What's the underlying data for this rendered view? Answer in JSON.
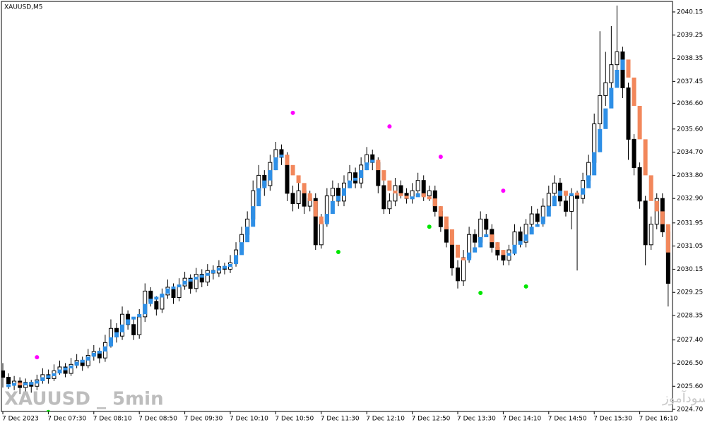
{
  "chart_data": {
    "type": "candlestick",
    "title": "XAUUSD,M5",
    "watermark": "XAUUSD _ 5min",
    "credit": "انتشار در سایت سودآموز",
    "up_color": "#ffffff",
    "down_color": "#000000",
    "categories": [
      "7 Dec 2023",
      null,
      null,
      null,
      null,
      null,
      null,
      null,
      "7 Dec 07:30",
      null,
      null,
      null,
      null,
      null,
      null,
      null,
      "7 Dec 08:10",
      null,
      null,
      null,
      null,
      null,
      null,
      null,
      "7 Dec 08:50",
      null,
      null,
      null,
      null,
      null,
      null,
      null,
      "7 Dec 09:30",
      null,
      null,
      null,
      null,
      null,
      null,
      null,
      "7 Dec 10:10",
      null,
      null,
      null,
      null,
      null,
      null,
      null,
      "7 Dec 10:50",
      null,
      null,
      null,
      null,
      null,
      null,
      null,
      "7 Dec 11:30",
      null,
      null,
      null,
      null,
      null,
      null,
      null,
      "7 Dec 12:10",
      null,
      null,
      null,
      null,
      null,
      null,
      null,
      "7 Dec 12:50",
      null,
      null,
      null,
      null,
      null,
      null,
      null,
      "7 Dec 13:30",
      null,
      null,
      null,
      null,
      null,
      null,
      null,
      "7 Dec 14:10",
      null,
      null,
      null,
      null,
      null,
      null,
      null,
      "7 Dec 14:50",
      null,
      null,
      null,
      null,
      null,
      null,
      null,
      "7 Dec 15:30",
      null,
      null,
      null,
      null,
      null,
      null,
      null,
      "7 Dec 16:10",
      null,
      null,
      null,
      null,
      null
    ],
    "candles": [
      [
        2026.2,
        2026.5,
        2025.55,
        2025.95
      ],
      [
        2025.95,
        2026.1,
        2025.5,
        2025.7
      ],
      [
        2025.7,
        2026.0,
        2025.45,
        2025.8
      ],
      [
        2025.8,
        2025.95,
        2025.3,
        2025.55
      ],
      [
        2025.55,
        2025.9,
        2025.4,
        2025.75
      ],
      [
        2025.75,
        2025.85,
        2025.35,
        2025.6
      ],
      [
        2025.6,
        2026.05,
        2025.45,
        2025.85
      ],
      [
        2025.85,
        2026.3,
        2025.7,
        2026.05
      ],
      [
        2026.05,
        2026.25,
        2025.7,
        2025.9
      ],
      [
        2025.9,
        2026.45,
        2025.8,
        2026.2
      ],
      [
        2026.2,
        2026.6,
        2026.05,
        2026.35
      ],
      [
        2026.35,
        2026.5,
        2025.95,
        2026.1
      ],
      [
        2026.1,
        2026.7,
        2026.0,
        2026.45
      ],
      [
        2026.45,
        2026.85,
        2026.3,
        2026.6
      ],
      [
        2026.6,
        2026.75,
        2026.2,
        2026.4
      ],
      [
        2026.4,
        2027.05,
        2026.3,
        2026.8
      ],
      [
        2026.8,
        2027.2,
        2026.6,
        2026.95
      ],
      [
        2026.95,
        2027.1,
        2026.5,
        2026.7
      ],
      [
        2026.7,
        2027.6,
        2026.55,
        2027.3
      ],
      [
        2027.3,
        2028.2,
        2027.1,
        2027.85
      ],
      [
        2027.85,
        2028.05,
        2027.3,
        2027.55
      ],
      [
        2027.55,
        2028.7,
        2027.4,
        2028.4
      ],
      [
        2028.4,
        2028.55,
        2027.8,
        2028.0
      ],
      [
        2028.0,
        2028.2,
        2027.4,
        2027.6
      ],
      [
        2027.6,
        2028.6,
        2027.45,
        2028.3
      ],
      [
        2028.3,
        2029.6,
        2028.1,
        2029.3
      ],
      [
        2029.3,
        2029.45,
        2028.7,
        2028.9
      ],
      [
        2028.9,
        2029.1,
        2028.35,
        2028.6
      ],
      [
        2028.6,
        2029.4,
        2028.45,
        2029.15
      ],
      [
        2029.15,
        2029.75,
        2029.0,
        2029.45
      ],
      [
        2029.45,
        2029.6,
        2028.8,
        2029.05
      ],
      [
        2029.05,
        2029.8,
        2028.9,
        2029.5
      ],
      [
        2029.5,
        2030.05,
        2029.35,
        2029.8
      ],
      [
        2029.8,
        2029.95,
        2029.2,
        2029.4
      ],
      [
        2029.4,
        2030.2,
        2029.25,
        2029.95
      ],
      [
        2029.95,
        2030.15,
        2029.45,
        2029.65
      ],
      [
        2029.65,
        2030.35,
        2029.5,
        2030.1
      ],
      [
        2030.1,
        2030.3,
        2029.75,
        2030.0
      ],
      [
        2030.0,
        2030.5,
        2029.85,
        2030.25
      ],
      [
        2030.25,
        2030.4,
        2029.95,
        2030.15
      ],
      [
        2030.15,
        2030.7,
        2030.0,
        2030.4
      ],
      [
        2030.4,
        2031.2,
        2030.25,
        2030.9
      ],
      [
        2030.9,
        2031.8,
        2030.75,
        2031.5
      ],
      [
        2031.5,
        2032.4,
        2031.3,
        2032.1
      ],
      [
        2032.1,
        2033.6,
        2031.9,
        2033.2
      ],
      [
        2033.2,
        2034.2,
        2032.9,
        2033.8
      ],
      [
        2033.8,
        2034.0,
        2033.0,
        2033.4
      ],
      [
        2033.4,
        2034.6,
        2033.2,
        2034.3
      ],
      [
        2034.3,
        2035.1,
        2034.0,
        2034.8
      ],
      [
        2034.8,
        2035.0,
        2034.2,
        2034.5
      ],
      [
        2034.5,
        2034.7,
        2032.8,
        2033.1
      ],
      [
        2033.1,
        2033.4,
        2032.4,
        2032.7
      ],
      [
        2032.7,
        2033.5,
        2032.5,
        2033.2
      ],
      [
        2033.2,
        2033.4,
        2032.3,
        2032.6
      ],
      [
        2032.6,
        2033.2,
        2032.4,
        2032.9
      ],
      [
        2032.9,
        2033.1,
        2030.9,
        2031.1
      ],
      [
        2031.1,
        2032.3,
        2030.95,
        2032.0
      ],
      [
        2032.0,
        2033.3,
        2031.8,
        2033.0
      ],
      [
        2033.0,
        2033.6,
        2032.7,
        2033.3
      ],
      [
        2033.3,
        2033.5,
        2032.6,
        2032.8
      ],
      [
        2032.8,
        2033.8,
        2032.6,
        2033.5
      ],
      [
        2033.5,
        2034.2,
        2033.3,
        2033.9
      ],
      [
        2033.9,
        2034.1,
        2033.3,
        2033.5
      ],
      [
        2033.5,
        2034.5,
        2033.3,
        2034.2
      ],
      [
        2034.2,
        2034.9,
        2034.0,
        2034.6
      ],
      [
        2034.6,
        2034.8,
        2034.0,
        2034.3
      ],
      [
        2034.3,
        2034.5,
        2033.1,
        2033.4
      ],
      [
        2033.4,
        2033.6,
        2032.3,
        2032.5
      ],
      [
        2032.5,
        2033.1,
        2032.3,
        2032.8
      ],
      [
        2032.8,
        2033.7,
        2032.6,
        2033.4
      ],
      [
        2033.4,
        2033.6,
        2032.9,
        2033.1
      ],
      [
        2033.1,
        2033.3,
        2032.7,
        2032.9
      ],
      [
        2032.9,
        2033.5,
        2032.7,
        2033.2
      ],
      [
        2033.2,
        2033.9,
        2033.0,
        2033.6
      ],
      [
        2033.6,
        2033.8,
        2032.8,
        2033.0
      ],
      [
        2033.0,
        2033.4,
        2032.8,
        2033.2
      ],
      [
        2033.2,
        2033.4,
        2032.2,
        2032.4
      ],
      [
        2032.4,
        2032.6,
        2031.6,
        2031.8
      ],
      [
        2031.8,
        2032.0,
        2031.0,
        2031.2
      ],
      [
        2031.2,
        2031.4,
        2029.9,
        2030.2
      ],
      [
        2030.2,
        2030.5,
        2029.4,
        2029.7
      ],
      [
        2029.7,
        2030.9,
        2029.5,
        2030.6
      ],
      [
        2030.6,
        2031.8,
        2030.4,
        2031.5
      ],
      [
        2031.5,
        2031.7,
        2030.9,
        2031.2
      ],
      [
        2031.2,
        2032.4,
        2031.0,
        2032.1
      ],
      [
        2032.1,
        2032.3,
        2031.5,
        2031.7
      ],
      [
        2031.7,
        2031.9,
        2030.8,
        2031.0
      ],
      [
        2031.0,
        2031.2,
        2030.5,
        2030.7
      ],
      [
        2030.7,
        2030.9,
        2030.3,
        2030.5
      ],
      [
        2030.5,
        2031.1,
        2030.3,
        2030.9
      ],
      [
        2030.9,
        2031.9,
        2030.7,
        2031.6
      ],
      [
        2031.6,
        2031.8,
        2031.0,
        2031.2
      ],
      [
        2031.2,
        2032.1,
        2031.0,
        2031.9
      ],
      [
        2031.9,
        2032.6,
        2031.7,
        2032.3
      ],
      [
        2032.3,
        2032.5,
        2031.8,
        2032.0
      ],
      [
        2032.0,
        2032.9,
        2031.8,
        2032.6
      ],
      [
        2032.6,
        2033.4,
        2032.4,
        2033.1
      ],
      [
        2033.1,
        2033.8,
        2032.9,
        2033.5
      ],
      [
        2033.5,
        2033.7,
        2032.6,
        2032.8
      ],
      [
        2032.8,
        2033.0,
        2032.2,
        2032.4
      ],
      [
        2032.4,
        2033.3,
        2031.7,
        2033.0
      ],
      [
        2033.0,
        2033.2,
        2030.1,
        2032.9
      ],
      [
        2032.9,
        2033.9,
        2032.7,
        2033.6
      ],
      [
        2033.6,
        2034.6,
        2033.4,
        2034.3
      ],
      [
        2034.3,
        2036.2,
        2034.1,
        2035.8
      ],
      [
        2035.8,
        2039.4,
        2035.6,
        2036.9
      ],
      [
        2036.9,
        2038.6,
        2036.5,
        2037.4
      ],
      [
        2037.4,
        2039.6,
        2037.2,
        2038.1
      ],
      [
        2038.1,
        2040.4,
        2037.9,
        2038.6
      ],
      [
        2038.6,
        2038.8,
        2036.8,
        2037.2
      ],
      [
        2037.2,
        2037.4,
        2034.4,
        2035.2
      ],
      [
        2035.2,
        2035.4,
        2033.8,
        2034.1
      ],
      [
        2034.1,
        2034.3,
        2032.5,
        2032.8
      ],
      [
        2032.8,
        2033.0,
        2030.3,
        2031.1
      ],
      [
        2031.1,
        2032.2,
        2030.9,
        2031.9
      ],
      [
        2031.9,
        2033.1,
        2031.7,
        2032.9
      ],
      [
        2032.9,
        2033.1,
        2031.4,
        2031.6
      ],
      [
        2031.6,
        2031.8,
        2028.7,
        2029.6
      ]
    ],
    "indicator": {
      "up_color": "#2e8fe6",
      "down_color": "#f2875b",
      "values": [
        2025.6,
        2025.65,
        2025.7,
        2025.68,
        2025.7,
        2025.72,
        2025.8,
        2025.95,
        2026.0,
        2026.1,
        2026.25,
        2026.3,
        2026.4,
        2026.55,
        2026.6,
        2026.75,
        2026.9,
        2026.95,
        2027.15,
        2027.5,
        2027.7,
        2028.0,
        2028.2,
        2028.3,
        2028.4,
        2028.8,
        2029.0,
        2029.05,
        2029.2,
        2029.4,
        2029.45,
        2029.55,
        2029.7,
        2029.75,
        2029.85,
        2029.9,
        2030.0,
        2030.1,
        2030.2,
        2030.25,
        2030.35,
        2030.7,
        2031.2,
        2031.8,
        2032.6,
        2033.3,
        2033.6,
        2034.0,
        2034.5,
        2034.6,
        2034.2,
        2033.8,
        2033.5,
        2033.1,
        2032.8,
        2032.2,
        2031.9,
        2032.3,
        2032.8,
        2033.0,
        2033.3,
        2033.6,
        2033.7,
        2034.0,
        2034.3,
        2034.4,
        2034.0,
        2033.6,
        2033.2,
        2033.1,
        2033.0,
        2032.9,
        2032.95,
        2033.1,
        2032.95,
        2032.9,
        2032.6,
        2032.2,
        2031.7,
        2031.1,
        2030.6,
        2030.5,
        2030.8,
        2031.0,
        2031.4,
        2031.5,
        2031.2,
        2030.9,
        2030.7,
        2030.75,
        2031.1,
        2031.25,
        2031.5,
        2031.8,
        2031.9,
        2032.2,
        2032.6,
        2033.0,
        2033.2,
        2033.0,
        2033.1,
        2033.05,
        2033.3,
        2033.8,
        2034.7,
        2035.6,
        2036.4,
        2037.2,
        2037.9,
        2038.3,
        2037.6,
        2036.5,
        2035.2,
        2033.8,
        2032.8,
        2032.4,
        2031.9,
        2030.8
      ]
    },
    "signals": [
      {
        "color": "#ff00ff",
        "values": [
          null,
          null,
          null,
          null,
          null,
          null,
          2026.73,
          null,
          null,
          null,
          null,
          null,
          null,
          null,
          null,
          null,
          null,
          null,
          null,
          null,
          null,
          null,
          null,
          null,
          null,
          null,
          null,
          null,
          null,
          null,
          null,
          null,
          null,
          null,
          null,
          null,
          null,
          null,
          null,
          null,
          null,
          null,
          null,
          null,
          null,
          null,
          null,
          null,
          null,
          null,
          null,
          2036.23,
          null,
          null,
          null,
          null,
          null,
          null,
          null,
          null,
          null,
          null,
          null,
          null,
          null,
          null,
          null,
          null,
          2035.7,
          null,
          null,
          null,
          null,
          null,
          null,
          null,
          null,
          2034.52,
          null,
          null,
          null,
          null,
          null,
          null,
          null,
          null,
          null,
          null,
          2033.2,
          null,
          null,
          null,
          null,
          null,
          null,
          null,
          null,
          null,
          null,
          null,
          null,
          null,
          null,
          null,
          null,
          null,
          null,
          null,
          null,
          null,
          null,
          null,
          null,
          null,
          null,
          null,
          null,
          null
        ]
      },
      {
        "color": "#00e600",
        "values": [
          null,
          null,
          null,
          null,
          null,
          null,
          null,
          null,
          2024.6,
          null,
          null,
          null,
          null,
          null,
          null,
          null,
          null,
          null,
          null,
          null,
          null,
          null,
          null,
          null,
          null,
          null,
          null,
          null,
          null,
          null,
          null,
          null,
          null,
          null,
          null,
          null,
          null,
          null,
          null,
          null,
          null,
          null,
          null,
          null,
          null,
          null,
          null,
          null,
          null,
          null,
          null,
          null,
          null,
          null,
          null,
          null,
          null,
          null,
          null,
          2030.82,
          null,
          null,
          null,
          null,
          null,
          null,
          null,
          null,
          null,
          null,
          null,
          null,
          null,
          null,
          null,
          2031.8,
          null,
          null,
          null,
          null,
          null,
          null,
          null,
          null,
          2029.23,
          null,
          null,
          null,
          null,
          null,
          null,
          null,
          2029.48,
          null,
          null,
          null,
          null,
          null,
          null,
          null,
          null,
          null,
          null,
          null,
          null,
          null,
          null,
          null,
          null,
          null,
          null,
          null,
          null,
          null,
          null,
          null,
          null,
          null
        ]
      }
    ],
    "ylim": [
      2024.62,
      2040.56
    ],
    "yticks": [
      2040.15,
      2039.25,
      2038.35,
      2037.45,
      {
        "value": 2036.6,
        "label": "2036.60"
      },
      {
        "value": 2035.6,
        "label": "2035.60"
      },
      {
        "value": 2034.7,
        "label": "2034.70"
      },
      {
        "value": 2033.8,
        "label": "2033.80"
      },
      {
        "value": 2032.9,
        "label": "2032.90"
      },
      2031.95,
      2031.05,
      2030.15,
      2029.25,
      2028.35,
      {
        "value": 2027.4,
        "label": "2027.40"
      },
      {
        "value": 2026.5,
        "label": "2026.50"
      },
      {
        "value": 2025.6,
        "label": "2025.60"
      },
      {
        "value": 2024.7,
        "label": "2024.70"
      }
    ]
  }
}
